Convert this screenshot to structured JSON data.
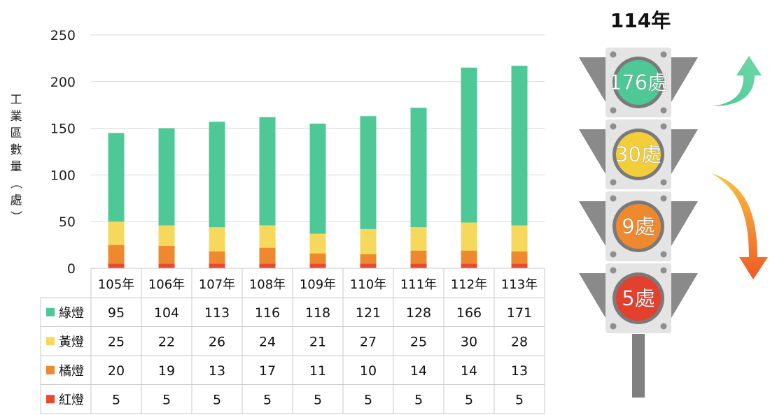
{
  "chart_data": {
    "type": "bar",
    "stacked": true,
    "categories": [
      "105年",
      "106年",
      "107年",
      "108年",
      "109年",
      "110年",
      "111年",
      "112年",
      "113年"
    ],
    "series": [
      {
        "name": "紅燈",
        "color": "#e84a2f",
        "values": [
          5,
          5,
          5,
          5,
          5,
          5,
          5,
          5,
          5
        ]
      },
      {
        "name": "橘燈",
        "color": "#ee8a2d",
        "values": [
          20,
          19,
          13,
          17,
          11,
          10,
          14,
          14,
          13
        ]
      },
      {
        "name": "黃燈",
        "color": "#f6d95c",
        "values": [
          25,
          22,
          26,
          24,
          21,
          27,
          25,
          30,
          28
        ]
      },
      {
        "name": "綠燈",
        "color": "#4ec896",
        "values": [
          95,
          104,
          113,
          116,
          118,
          121,
          128,
          166,
          171
        ]
      }
    ],
    "table_order": [
      "綠燈",
      "黃燈",
      "橘燈",
      "紅燈"
    ],
    "ylabel": "工業區數量（處）",
    "ylim": [
      0,
      250
    ],
    "yticks": [
      0,
      50,
      100,
      150,
      200,
      250
    ],
    "grid": true,
    "legend": "data-table"
  },
  "traffic_light": {
    "title": "114年",
    "lamps": [
      {
        "label": "176處",
        "color": "#4ec896"
      },
      {
        "label": "30處",
        "color": "#f2cf3a"
      },
      {
        "label": "9處",
        "color": "#ee8a2d"
      },
      {
        "label": "5處",
        "color": "#e3402d"
      }
    ],
    "trend_up_color": "#4ec896",
    "trend_down_color": "#ee6a2a"
  }
}
